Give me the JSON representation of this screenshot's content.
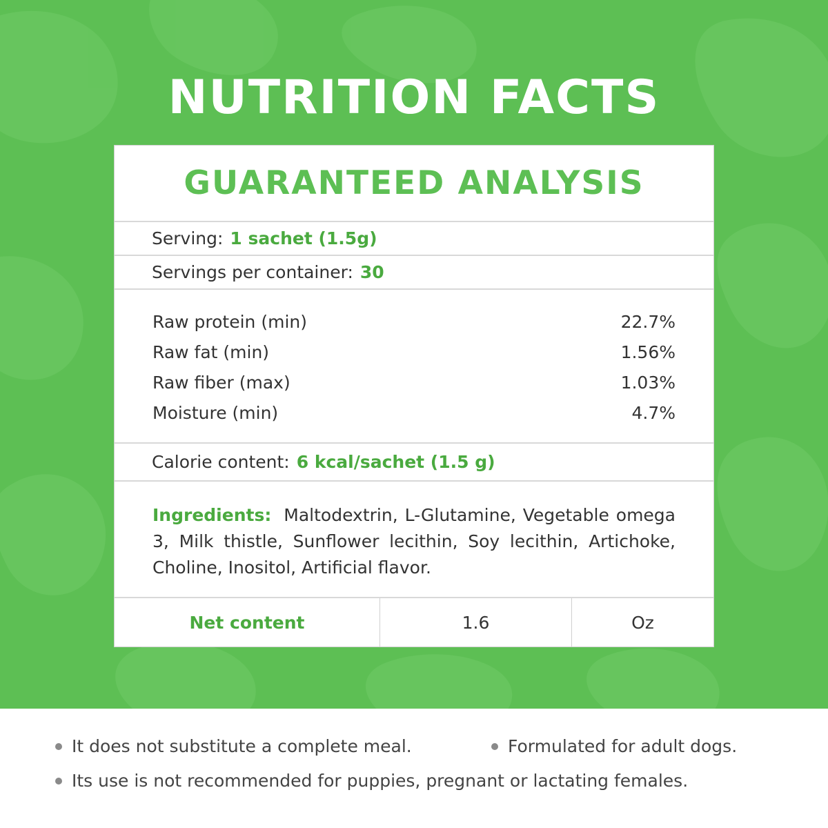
{
  "header": {
    "title": "NUTRITION FACTS"
  },
  "card": {
    "subtitle": "GUARANTEED ANALYSIS",
    "serving": {
      "label": "Serving:",
      "value": "1 sachet (1.5g)"
    },
    "servings_per_container": {
      "label": "Servings per container:",
      "value": "30"
    },
    "analysis": [
      {
        "name": "Raw protein (min)",
        "value": "22.7%"
      },
      {
        "name": "Raw fat (min)",
        "value": "1.56%"
      },
      {
        "name": "Raw fiber (max)",
        "value": "1.03%"
      },
      {
        "name": "Moisture (min)",
        "value": "4.7%"
      }
    ],
    "calorie": {
      "label": "Calorie content:",
      "value": "6 kcal/sachet (1.5 g)"
    },
    "ingredients": {
      "label": "Ingredients:",
      "text": "Maltodextrin, L-Glutamine, Vegetable omega 3, Milk thistle, Sunflower lecithin, Soy lecithin, Artichoke, Choline, Inositol, Artificial flavor."
    },
    "net_content": {
      "label": "Net content",
      "value": "1.6",
      "unit": "Oz"
    }
  },
  "notes": [
    "It does not substitute a complete meal.",
    "Formulated for adult dogs.",
    "Its use is not recommended for puppies, pregnant or lactating females."
  ],
  "colors": {
    "brand_green": "#5dbf54",
    "text_green": "#4aaa3f",
    "text": "#333333"
  }
}
